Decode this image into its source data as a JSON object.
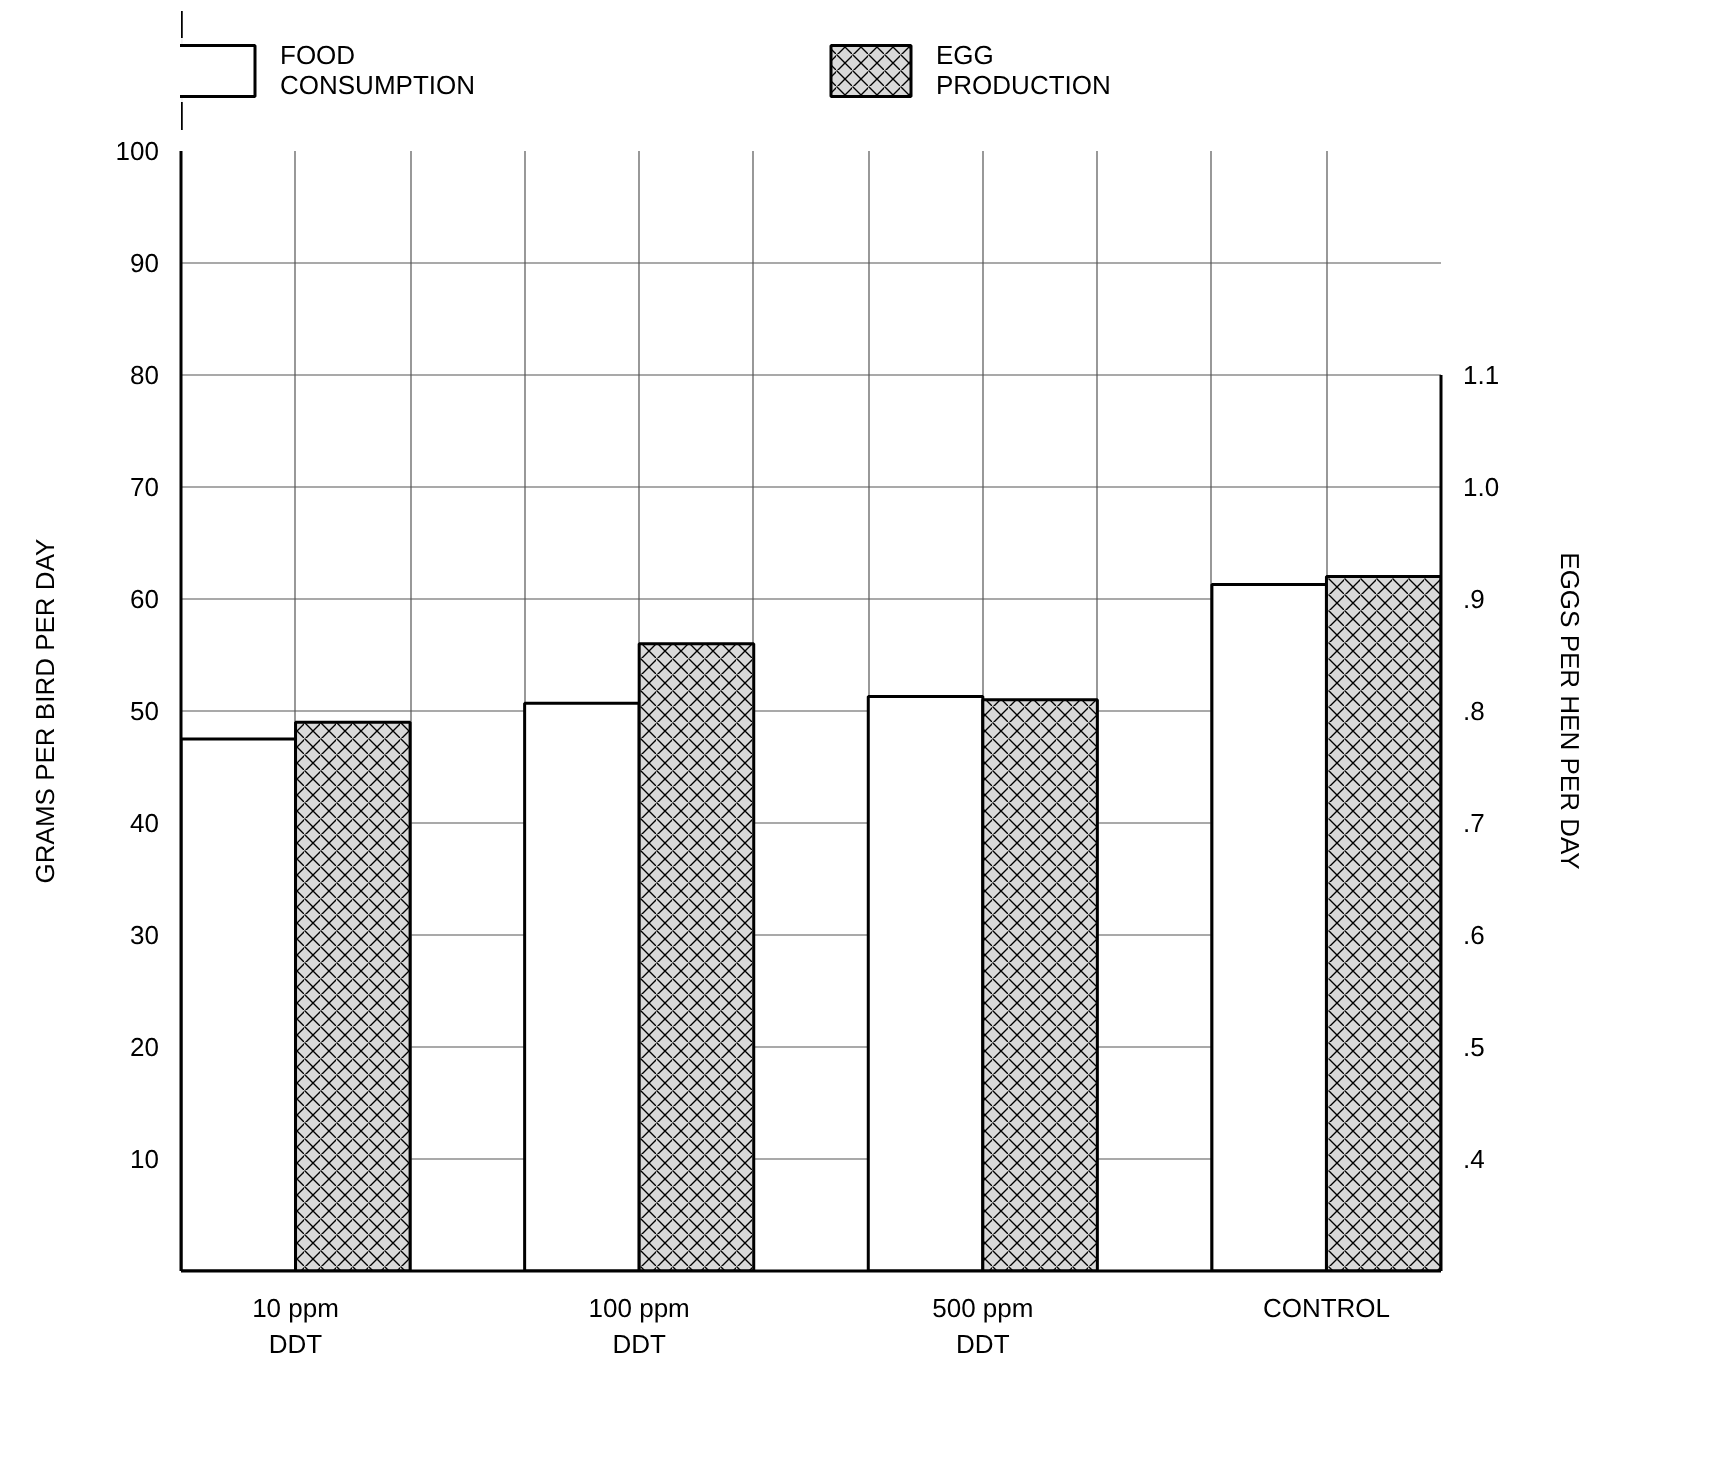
{
  "chart_data": {
    "type": "bar",
    "categories": [
      "10 ppm\nDDT",
      "100 ppm\nDDT",
      "500 ppm\nDDT",
      "CONTROL"
    ],
    "series": [
      {
        "name": "FOOD CONSUMPTION",
        "color": "#ffffff",
        "values": [
          47.5,
          50.7,
          51.3,
          61.3
        ]
      },
      {
        "name": "EGG PRODUCTION",
        "color": "#d9d9d9",
        "axis": "y2",
        "values": [
          0.79,
          0.86,
          0.81,
          0.92
        ]
      }
    ],
    "ylabel": "GRAMS PER BIRD PER DAY",
    "y2label": "EGGS PER HEN PER DAY",
    "ylim": [
      0,
      100
    ],
    "yticks": [
      10,
      20,
      30,
      40,
      50,
      60,
      70,
      80,
      90,
      100
    ],
    "y2lim": [
      0.3,
      1.3
    ],
    "y2ticks": [
      {
        "value": 0.4,
        "label": ".4"
      },
      {
        "value": 0.5,
        "label": ".5"
      },
      {
        "value": 0.6,
        "label": ".6"
      },
      {
        "value": 0.7,
        "label": ".7"
      },
      {
        "value": 0.8,
        "label": ".8"
      },
      {
        "value": 0.9,
        "label": ".9"
      },
      {
        "value": 1.0,
        "label": "1.0"
      },
      {
        "value": 1.1,
        "label": "1.1"
      }
    ],
    "grid": true,
    "legend": "top"
  }
}
